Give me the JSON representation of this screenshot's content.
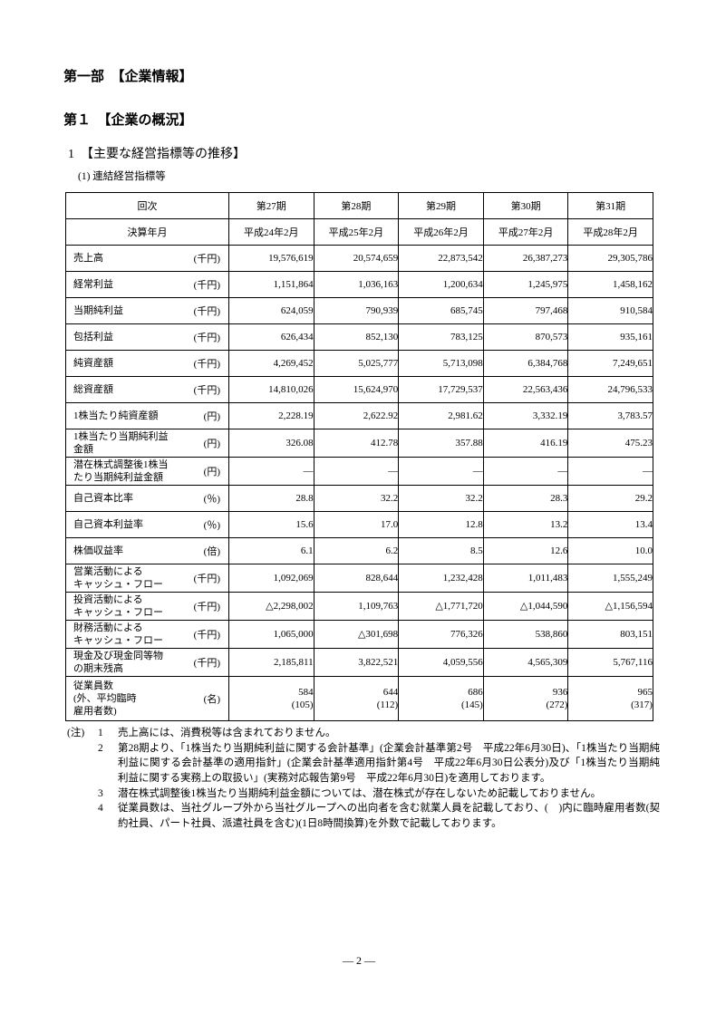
{
  "colors": {
    "background": "#ffffff",
    "text": "#000000",
    "table_border": "#000000"
  },
  "document": {
    "part_heading": "第一部　【企業情報】",
    "chapter_heading": "第１　【企業の概況】",
    "section_heading": "1　【主要な経営指標等の推移】",
    "subsection_heading": "(1) 連結経営指標等",
    "footer_page": "― 2 ―"
  },
  "table": {
    "header": [
      {
        "label": "回次",
        "cells": [
          "第27期",
          "第28期",
          "第29期",
          "第30期",
          "第31期"
        ]
      },
      {
        "label": "決算年月",
        "cells": [
          "平成24年2月",
          "平成25年2月",
          "平成26年2月",
          "平成27年2月",
          "平成28年2月"
        ]
      }
    ],
    "rows": [
      {
        "label": "売上高",
        "unit": "(千円)",
        "values": [
          "19,576,619",
          "20,574,659",
          "22,873,542",
          "26,387,273",
          "29,305,786"
        ]
      },
      {
        "label": "経常利益",
        "unit": "(千円)",
        "values": [
          "1,151,864",
          "1,036,163",
          "1,200,634",
          "1,245,975",
          "1,458,162"
        ]
      },
      {
        "label": "当期純利益",
        "unit": "(千円)",
        "values": [
          "624,059",
          "790,939",
          "685,745",
          "797,468",
          "910,584"
        ]
      },
      {
        "label": "包括利益",
        "unit": "(千円)",
        "values": [
          "626,434",
          "852,130",
          "783,125",
          "870,573",
          "935,161"
        ]
      },
      {
        "label": "純資産額",
        "unit": "(千円)",
        "values": [
          "4,269,452",
          "5,025,777",
          "5,713,098",
          "6,384,768",
          "7,249,651"
        ]
      },
      {
        "label": "総資産額",
        "unit": "(千円)",
        "values": [
          "14,810,026",
          "15,624,970",
          "17,729,537",
          "22,563,436",
          "24,796,533"
        ]
      },
      {
        "label": "1株当たり純資産額",
        "unit": "(円)",
        "values": [
          "2,228.19",
          "2,622.92",
          "2,981.62",
          "3,332.19",
          "3,783.57"
        ]
      },
      {
        "label": "1株当たり当期純利益\n金額",
        "unit": "(円)",
        "values": [
          "326.08",
          "412.78",
          "357.88",
          "416.19",
          "475.23"
        ]
      },
      {
        "label": "潜在株式調整後1株当\nたり当期純利益金額",
        "unit": "(円)",
        "values": [
          "―",
          "―",
          "―",
          "―",
          "―"
        ]
      },
      {
        "label": "自己資本比率",
        "unit": "(％)",
        "values": [
          "28.8",
          "32.2",
          "32.2",
          "28.3",
          "29.2"
        ]
      },
      {
        "label": "自己資本利益率",
        "unit": "(％)",
        "values": [
          "15.6",
          "17.0",
          "12.8",
          "13.2",
          "13.4"
        ]
      },
      {
        "label": "株価収益率",
        "unit": "(倍)",
        "values": [
          "6.1",
          "6.2",
          "8.5",
          "12.6",
          "10.0"
        ]
      },
      {
        "label": "営業活動による\nキャッシュ・フロー",
        "unit": "(千円)",
        "values": [
          "1,092,069",
          "828,644",
          "1,232,428",
          "1,011,483",
          "1,555,249"
        ]
      },
      {
        "label": "投資活動による\nキャッシュ・フロー",
        "unit": "(千円)",
        "values": [
          "△2,298,002",
          "1,109,763",
          "△1,771,720",
          "△1,044,590",
          "△1,156,594"
        ]
      },
      {
        "label": "財務活動による\nキャッシュ・フロー",
        "unit": "(千円)",
        "values": [
          "1,065,000",
          "△301,698",
          "776,326",
          "538,860",
          "803,151"
        ]
      },
      {
        "label": "現金及び現金同等物\nの期末残高",
        "unit": "(千円)",
        "values": [
          "2,185,811",
          "3,822,521",
          "4,059,556",
          "4,565,309",
          "5,767,116"
        ]
      },
      {
        "label": "従業員数\n(外、平均臨時\n雇用者数)",
        "unit": "(名)",
        "values": [
          "584\n(105)",
          "644\n(112)",
          "686\n(145)",
          "936\n(272)",
          "965\n(317)"
        ]
      }
    ]
  },
  "notes": {
    "prefix": "(注)",
    "items": [
      {
        "num": "1",
        "text": "売上高には、消費税等は含まれておりません。"
      },
      {
        "num": "2",
        "text": "第28期より、「1株当たり当期純利益に関する会計基準」(企業会計基準第2号　平成22年6月30日)、「1株当たり当期純利益に関する会計基準の適用指針」(企業会計基準適用指針第4号　平成22年6月30日公表分)及び「1株当たり当期純利益に関する実務上の取扱い」(実務対応報告第9号　平成22年6月30日)を適用しております。"
      },
      {
        "num": "3",
        "text": "潜在株式調整後1株当たり当期純利益金額については、潜在株式が存在しないため記載しておりません。"
      },
      {
        "num": "4",
        "text": "従業員数は、当社グループ外から当社グループへの出向者を含む就業人員を記載しており、(　)内に臨時雇用者数(契約社員、パート社員、派遣社員を含む)(1日8時間換算)を外数で記載しております。"
      }
    ]
  }
}
